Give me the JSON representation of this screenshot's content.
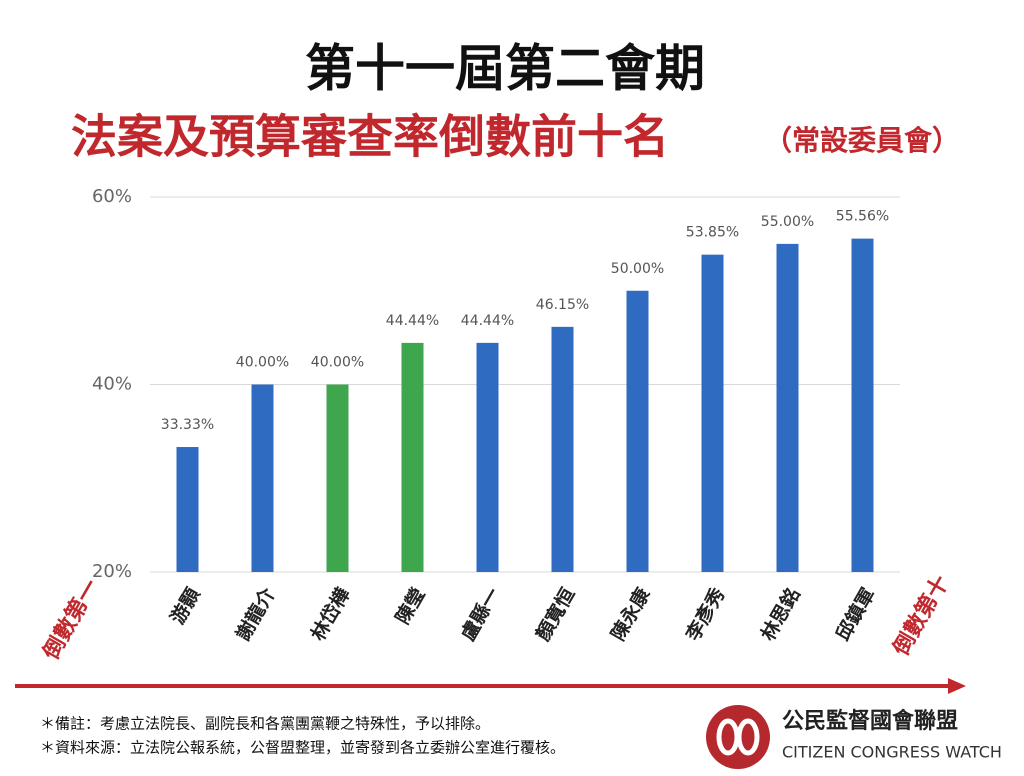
{
  "chart_data": {
    "type": "bar",
    "title": "第十一屆第二會期",
    "subtitle": "法案及預算審查率倒數前十名",
    "subtitle_note": "（常設委員會）",
    "categories": [
      "游顥",
      "謝龍介",
      "林岱樺",
      "陳瑩",
      "盧縣一",
      "顏寬恒",
      "陳永康",
      "李彥秀",
      "林思銘",
      "邱鎮軍"
    ],
    "values": [
      33.33,
      40,
      40,
      44.44,
      44.44,
      46.15,
      50,
      53.85,
      55,
      55.56
    ],
    "value_labels": [
      "33.33%",
      "40.00%",
      "40.00%",
      "44.44%",
      "44.44%",
      "46.15%",
      "50.00%",
      "53.85%",
      "55.00%",
      "55.56%"
    ],
    "colors": [
      "#2f6bc1",
      "#2f6bc1",
      "#3ea64d",
      "#3ea64d",
      "#2f6bc1",
      "#2f6bc1",
      "#2f6bc1",
      "#2f6bc1",
      "#2f6bc1",
      "#2f6bc1"
    ],
    "ylim": [
      20,
      60
    ],
    "yticks": [
      {
        "value": 20,
        "label": "20%"
      },
      {
        "value": 40,
        "label": "40%"
      },
      {
        "value": 60,
        "label": "60%"
      }
    ],
    "grid": true,
    "left_annotation": "倒數第一",
    "right_annotation": "倒數第十",
    "notes": [
      "＊備註：考慮立法院長、副院長和各黨團黨鞭之特殊性，予以排除。",
      "＊資料來源：立法院公報系統，公督盟整理，並寄發到各立委辦公室進行覆核。"
    ],
    "logo_text": "公民監督國會聯盟",
    "logo_subtext": "CITIZEN CONGRESS WATCH"
  }
}
